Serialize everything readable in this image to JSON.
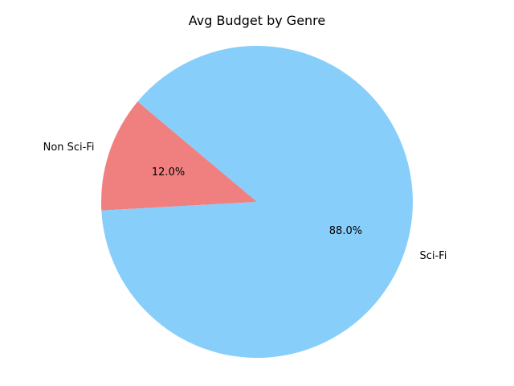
{
  "chart_data": {
    "type": "pie",
    "title": "Avg Budget by Genre",
    "labels": [
      "Non Sci-Fi",
      "Sci-Fi"
    ],
    "values": [
      12.0,
      88.0
    ],
    "percent_labels": [
      "12.0%",
      "88.0%"
    ],
    "colors": [
      "#f08080",
      "#87cefa"
    ],
    "start_angle_deg": 140,
    "direction": "counterclockwise",
    "legend": "none"
  }
}
